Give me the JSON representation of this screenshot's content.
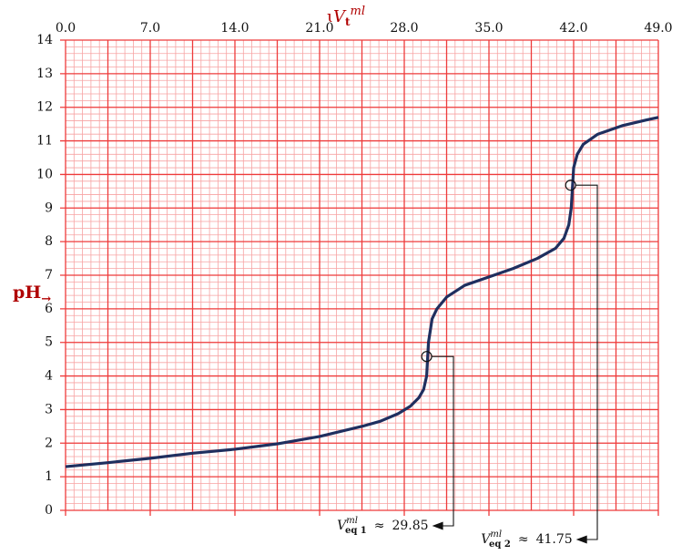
{
  "chart_data": {
    "type": "line",
    "x_label": {
      "marker": "ɩ",
      "symbol": "V",
      "subscript": "t",
      "superscript": "ml"
    },
    "y_label": {
      "text": "pH",
      "subscript": "→"
    },
    "x": [
      0,
      3.5,
      7,
      10.5,
      14,
      17.5,
      21,
      24.5,
      26,
      27.5,
      28.5,
      29.2,
      29.6,
      29.85,
      30.0,
      30.3,
      30.7,
      31.5,
      33,
      35,
      37,
      39,
      40.5,
      41.2,
      41.6,
      41.8,
      41.9,
      42.0,
      42.3,
      42.8,
      44,
      46,
      48,
      49
    ],
    "series": [
      {
        "color": "#1f2f5f",
        "values": [
          1.3,
          1.42,
          1.55,
          1.7,
          1.82,
          1.98,
          2.2,
          2.5,
          2.65,
          2.88,
          3.1,
          3.35,
          3.6,
          4.0,
          5.0,
          5.7,
          6.0,
          6.35,
          6.7,
          6.95,
          7.2,
          7.5,
          7.8,
          8.1,
          8.5,
          9.0,
          9.6,
          10.2,
          10.6,
          10.9,
          11.2,
          11.45,
          11.62,
          11.7
        ]
      }
    ],
    "xlim": [
      0,
      49
    ],
    "ylim": [
      0,
      14
    ],
    "xticks": [
      {
        "value": 0,
        "label": "0.0"
      },
      {
        "value": 7,
        "label": "7.0"
      },
      {
        "value": 14,
        "label": "14.0"
      },
      {
        "value": 21,
        "label": "21.0"
      },
      {
        "value": 28,
        "label": "28.0"
      },
      {
        "value": 35,
        "label": "35.0"
      },
      {
        "value": 42,
        "label": "42.0"
      },
      {
        "value": 49,
        "label": "49.0"
      }
    ],
    "yticks": [
      0,
      1,
      2,
      3,
      4,
      5,
      6,
      7,
      8,
      9,
      10,
      11,
      12,
      13,
      14
    ],
    "grid": {
      "x_major": 3.5,
      "x_minor": 0.7,
      "y_major": 1,
      "y_minor": 0.2,
      "major_color": "#ee3b3b",
      "minor_color": "#f7a3a3"
    },
    "annotations": [
      {
        "symbol": "V",
        "superscript": "ml",
        "subscript": "eq 1",
        "approx": "≈",
        "value": 29.85,
        "ph": 4.58
      },
      {
        "symbol": "V",
        "superscript": "ml",
        "subscript": "eq 2",
        "approx": "≈",
        "value": 41.75,
        "ph": 9.68
      }
    ]
  }
}
